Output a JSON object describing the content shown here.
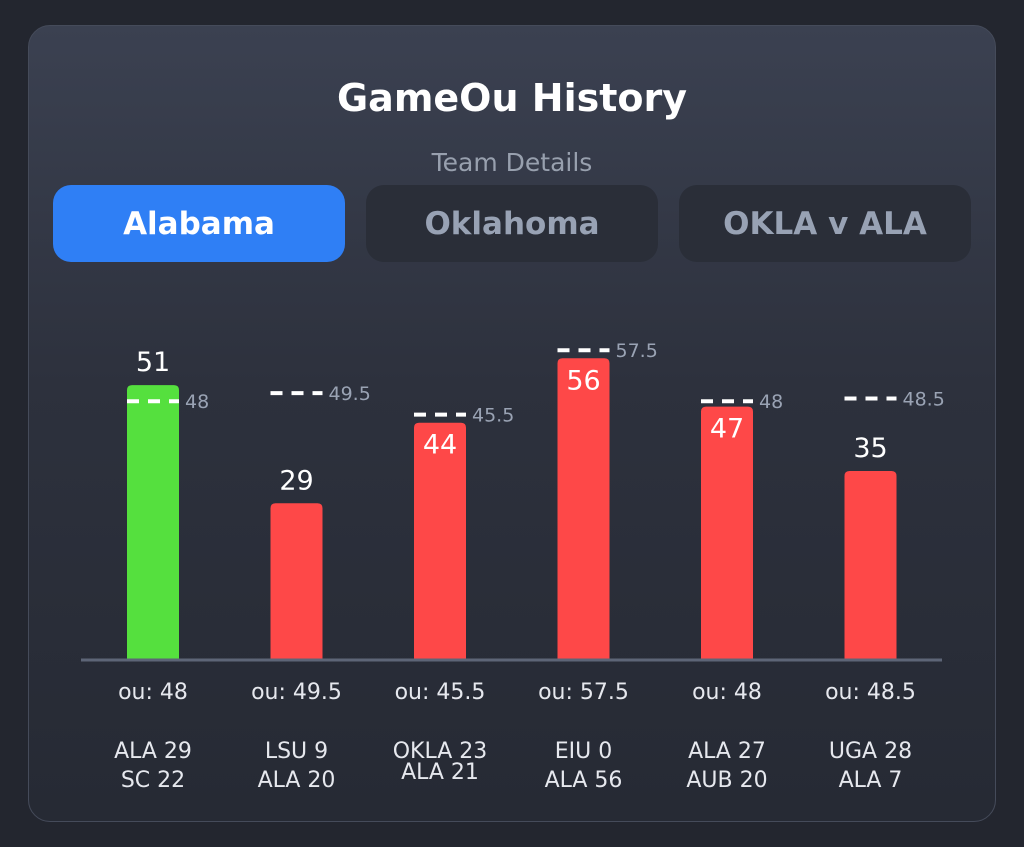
{
  "header": {
    "title": "GameOu History",
    "subtitle": "Team Details"
  },
  "tabs": [
    {
      "label": "Alabama",
      "active": true
    },
    {
      "label": "Oklahoma",
      "active": false
    },
    {
      "label": "OKLA v ALA",
      "active": false
    }
  ],
  "colors": {
    "over": "#55e03e",
    "under": "#fe4848",
    "active_tab": "#2f7ff5",
    "line": "#ffffff"
  },
  "chart_data": {
    "type": "bar",
    "categories": [
      "ALA 29 SC 22",
      "LSU 9 ALA 20",
      "OKLA 23 ALA 21",
      "EIU 0 ALA 56",
      "ALA 27 AUB 20",
      "UGA 28 ALA 7"
    ],
    "values": [
      51,
      29,
      44,
      56,
      47,
      35
    ],
    "ou_lines": [
      48,
      49.5,
      45.5,
      57.5,
      48,
      48.5
    ],
    "ou_labels": [
      "ou: 48",
      "ou: 49.5",
      "ou: 45.5",
      "ou: 57.5",
      "ou: 48",
      "ou: 48.5"
    ],
    "score_lines": [
      [
        "ALA 29",
        "SC 22"
      ],
      [
        "LSU 9",
        "ALA 20"
      ],
      [
        "OKLA 23",
        "ALA 21"
      ],
      [
        "EIU 0",
        "ALA 56"
      ],
      [
        "ALA 27",
        "AUB 20"
      ],
      [
        "UGA 28",
        "ALA 7"
      ]
    ],
    "result": [
      "over",
      "under",
      "under",
      "under",
      "under",
      "under"
    ],
    "ylim": [
      0,
      60
    ],
    "grid": false,
    "xlabel": "",
    "ylabel": ""
  }
}
